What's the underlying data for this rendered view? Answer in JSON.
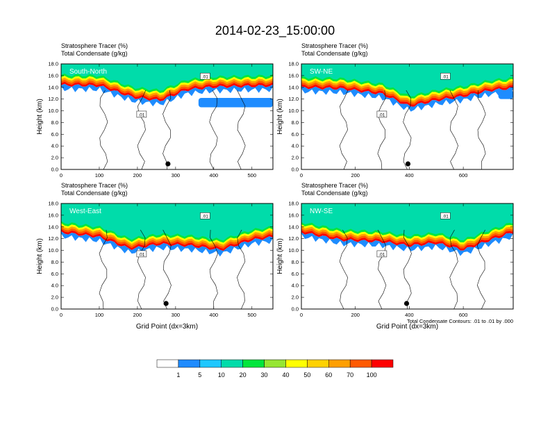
{
  "title": "2014-02-23_15:00:00",
  "colors": {
    "levels": [
      "#ffffff",
      "#1e8cff",
      "#1ec8ff",
      "#00dcaa",
      "#00e63c",
      "#96e632",
      "#ffff00",
      "#ffd200",
      "#ffa000",
      "#ff5a00",
      "#ff0000"
    ],
    "contour": "#000000",
    "frame": "#000000"
  },
  "colorbar": {
    "labels": [
      "1",
      "5",
      "10",
      "20",
      "30",
      "40",
      "50",
      "60",
      "70",
      "100"
    ]
  },
  "footnote": "Total Condensate Contours: .01 to .01 by .000",
  "chart_data": [
    {
      "type": "heatmap",
      "label": "South-North",
      "subtitle_line1": "Stratosphere Tracer   (%)",
      "subtitle_line2": "Total Condensate   (g/kg)",
      "ylabel": "Height (km)",
      "xlabel": "",
      "xlim": [
        0,
        555
      ],
      "ylim": [
        0,
        18
      ],
      "xticks": [
        "0",
        "100",
        "200",
        "300",
        "400",
        "500"
      ],
      "yticks": [
        "0.0",
        "2.0",
        "4.0",
        "6.0",
        "8.0",
        "10.0",
        "12.0",
        "14.0",
        "16.0",
        "18.0"
      ],
      "marker_x": 280,
      "contour_label": ".01",
      "tracer_bands": [
        {
          "x": [
            0,
            100,
            190,
            260,
            330,
            400,
            470,
            555
          ],
          "base": [
            16.1,
            16.0,
            14.0,
            13.5,
            15.3,
            15.8,
            15.9,
            16.0
          ]
        }
      ],
      "blue_patches": [
        {
          "x0": 360,
          "x1": 555,
          "y0": 10.6,
          "y1": 12.2
        }
      ]
    },
    {
      "type": "heatmap",
      "label": "SW-NE",
      "subtitle_line1": "Stratosphere Tracer   (%)",
      "subtitle_line2": "Total Condensate   (g/kg)",
      "ylabel": "Height (km)",
      "xlabel": "",
      "xlim": [
        0,
        785
      ],
      "ylim": [
        0,
        18
      ],
      "xticks": [
        "0",
        "200",
        "400",
        "600"
      ],
      "yticks": [
        "0.0",
        "2.0",
        "4.0",
        "6.0",
        "8.0",
        "10.0",
        "12.0",
        "14.0",
        "16.0",
        "18.0"
      ],
      "marker_x": 395,
      "contour_label": ".01",
      "tracer_bands": [
        {
          "x": [
            0,
            150,
            300,
            400,
            500,
            600,
            700,
            785
          ],
          "base": [
            15.7,
            15.5,
            14.6,
            12.5,
            13.5,
            14.2,
            15.2,
            15.6
          ]
        }
      ],
      "blue_patches": [
        {
          "x0": 730,
          "x1": 785,
          "y0": 12.0,
          "y1": 13.5
        }
      ]
    },
    {
      "type": "heatmap",
      "label": "West-East",
      "subtitle_line1": "Stratosphere Tracer   (%)",
      "subtitle_line2": "Total Condensate   (g/kg)",
      "ylabel": "Height (km)",
      "xlabel": "Grid Point (dx=3km)",
      "xlim": [
        0,
        555
      ],
      "ylim": [
        0,
        18
      ],
      "xticks": [
        "0",
        "100",
        "200",
        "300",
        "400",
        "500"
      ],
      "yticks": [
        "0.0",
        "2.0",
        "4.0",
        "6.0",
        "8.0",
        "10.0",
        "12.0",
        "14.0",
        "16.0",
        "18.0"
      ],
      "marker_x": 275,
      "contour_label": ".01",
      "tracer_bands": [
        {
          "x": [
            0,
            100,
            180,
            260,
            340,
            420,
            500,
            555
          ],
          "base": [
            14.8,
            14.0,
            12.0,
            12.8,
            12.5,
            11.8,
            13.5,
            14.0
          ]
        }
      ],
      "blue_patches": []
    },
    {
      "type": "heatmap",
      "label": "NW-SE",
      "subtitle_line1": "Stratosphere Tracer   (%)",
      "subtitle_line2": "Total Condensate   (g/kg)",
      "ylabel": "Height (km)",
      "xlabel": "Grid Point (dx=3km)",
      "xlim": [
        0,
        785
      ],
      "ylim": [
        0,
        18
      ],
      "xticks": [
        "0",
        "200",
        "400",
        "600"
      ],
      "yticks": [
        "0.0",
        "2.0",
        "4.0",
        "6.0",
        "8.0",
        "10.0",
        "12.0",
        "14.0",
        "16.0",
        "18.0"
      ],
      "marker_x": 390,
      "contour_label": ".01",
      "tracer_bands": [
        {
          "x": [
            0,
            150,
            300,
            400,
            500,
            600,
            700,
            785
          ],
          "base": [
            14.8,
            13.5,
            13.2,
            12.5,
            13.0,
            11.8,
            13.5,
            14.8
          ]
        }
      ],
      "blue_patches": []
    }
  ]
}
